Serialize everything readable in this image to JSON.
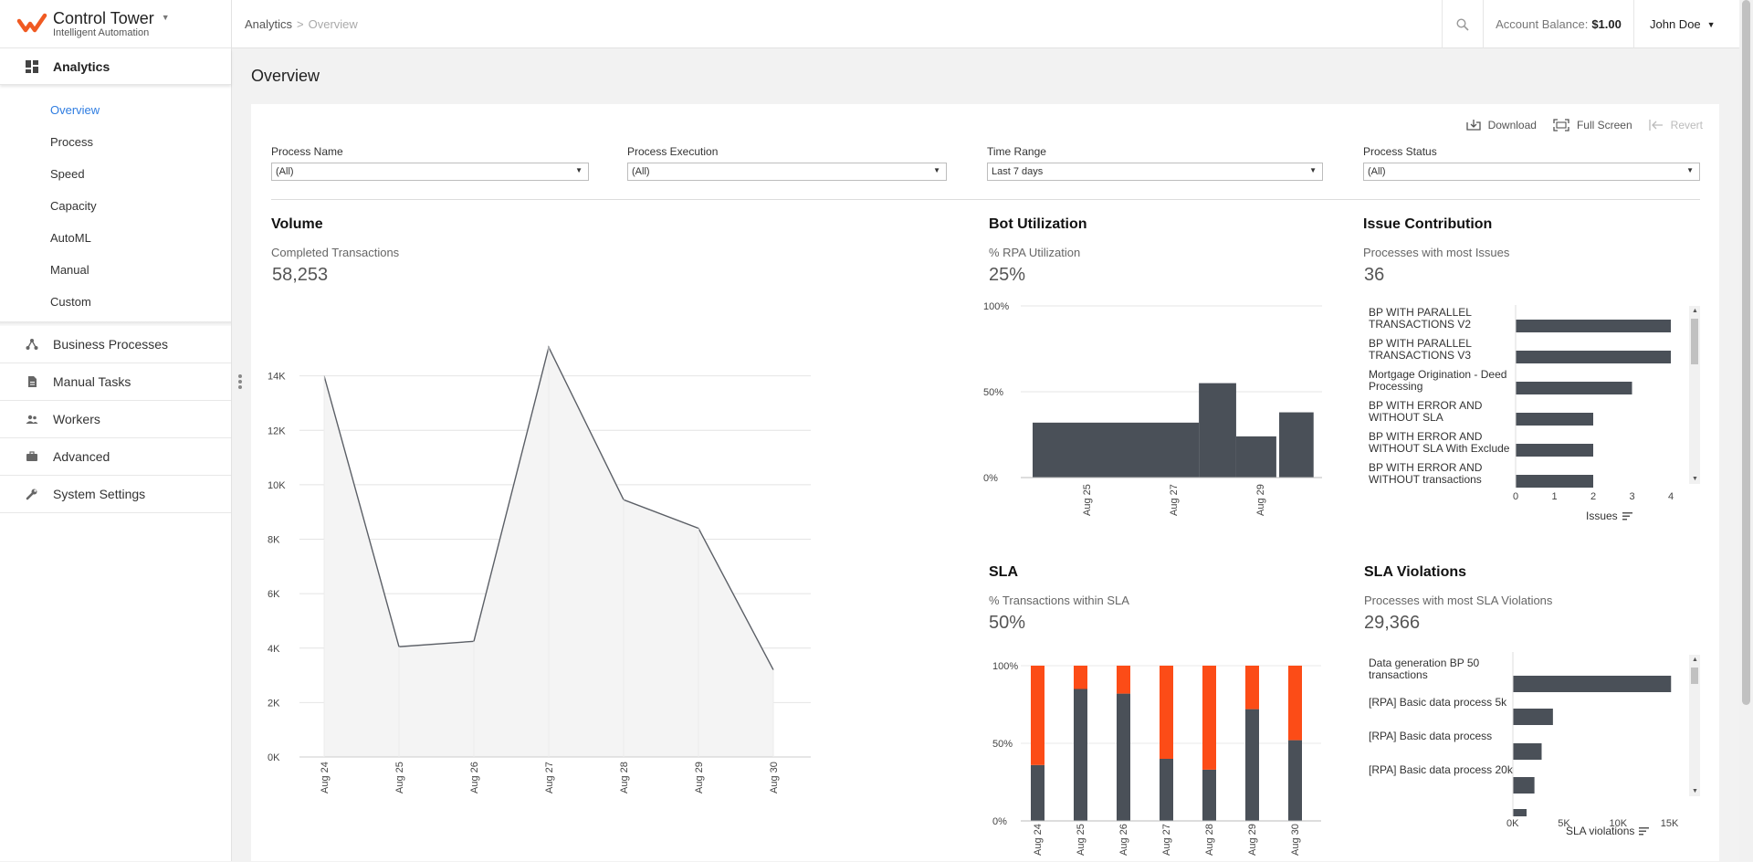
{
  "app": {
    "name": "Control Tower",
    "tagline": "Intelligent Automation"
  },
  "sidebar": {
    "section": "Analytics",
    "subitems": [
      "Overview",
      "Process",
      "Speed",
      "Capacity",
      "AutoML",
      "Manual",
      "Custom"
    ],
    "active_subitem": "Overview",
    "items": [
      {
        "label": "Business Processes",
        "icon": "hierarchy-icon"
      },
      {
        "label": "Manual Tasks",
        "icon": "document-icon"
      },
      {
        "label": "Workers",
        "icon": "people-icon"
      },
      {
        "label": "Advanced",
        "icon": "briefcase-icon"
      },
      {
        "label": "System Settings",
        "icon": "wrench-icon"
      }
    ]
  },
  "topbar": {
    "breadcrumb": [
      "Analytics",
      "Overview"
    ],
    "balance_label": "Account Balance:",
    "balance_value": "$1.00",
    "user": "John Doe"
  },
  "page": {
    "title": "Overview"
  },
  "toolbar": {
    "download": "Download",
    "fullscreen": "Full Screen",
    "revert": "Revert"
  },
  "filters": [
    {
      "label": "Process Name",
      "value": "(All)"
    },
    {
      "label": "Process Execution",
      "value": "(All)"
    },
    {
      "label": "Time Range",
      "value": "Last 7 days"
    },
    {
      "label": "Process Status",
      "value": "(All)"
    }
  ],
  "panels": {
    "volume": {
      "title": "Volume",
      "subtitle": "Completed Transactions",
      "value": "58,253"
    },
    "bot": {
      "title": "Bot Utilization",
      "subtitle": "% RPA Utilization",
      "value": "25%"
    },
    "issue": {
      "title": "Issue Contribution",
      "subtitle": "Processes with most Issues",
      "value": "36",
      "axis_title": "Issues"
    },
    "sla": {
      "title": "SLA",
      "subtitle": "% Transactions within SLA",
      "value": "50%"
    },
    "violations": {
      "title": "SLA Violations",
      "subtitle": "Processes with most SLA Violations",
      "value": "29,366",
      "axis_title": "SLA violations"
    }
  },
  "colors": {
    "accent": "#2f7de1",
    "bar": "#4a5058",
    "sla_miss": "#fc4c17",
    "logo": "#f05a22"
  },
  "chart_data": [
    {
      "id": "volume",
      "type": "area",
      "categories": [
        "Aug 24",
        "Aug 25",
        "Aug 26",
        "Aug 27",
        "Aug 28",
        "Aug 29",
        "Aug 30"
      ],
      "values": [
        14000,
        4050,
        4250,
        15050,
        9450,
        8400,
        3200
      ],
      "yticks": [
        "0K",
        "2K",
        "4K",
        "6K",
        "8K",
        "10K",
        "12K",
        "14K"
      ],
      "ylim": [
        0,
        16000
      ]
    },
    {
      "id": "bot_utilization",
      "type": "area",
      "xticks": [
        "Aug 25",
        "Aug 27",
        "Aug 29"
      ],
      "yticks": [
        "0%",
        "50%",
        "100%"
      ],
      "ylim": [
        0,
        100
      ],
      "segments": [
        {
          "from": 0.0,
          "to": 0.58,
          "level": 32
        },
        {
          "from": 0.58,
          "to": 0.71,
          "level": 55
        },
        {
          "from": 0.71,
          "to": 0.85,
          "level": 24
        },
        {
          "from": 0.86,
          "to": 0.98,
          "level": 38
        }
      ]
    },
    {
      "id": "issue_contribution",
      "type": "bar",
      "orientation": "horizontal",
      "categories": [
        "BP WITH PARALLEL TRANSACTIONS V2",
        "BP WITH PARALLEL TRANSACTIONS V3",
        "Mortgage Origination - Deed Processing",
        "BP WITH ERROR AND WITHOUT SLA",
        "BP WITH ERROR AND WITHOUT SLA With Exclude",
        "BP WITH ERROR AND WITHOUT transactions"
      ],
      "values": [
        4,
        4,
        3,
        2,
        2,
        2
      ],
      "xticks": [
        "0",
        "1",
        "2",
        "3",
        "4"
      ],
      "xlim": [
        0,
        4
      ],
      "xlabel": "Issues"
    },
    {
      "id": "sla",
      "type": "bar",
      "stacked": true,
      "categories": [
        "Aug 24",
        "Aug 25",
        "Aug 26",
        "Aug 27",
        "Aug 28",
        "Aug 29",
        "Aug 30"
      ],
      "series": [
        {
          "values": [
            36,
            85,
            82,
            40,
            33,
            72,
            52
          ]
        },
        {
          "values": [
            64,
            15,
            18,
            60,
            67,
            28,
            48
          ]
        }
      ],
      "yticks": [
        "0%",
        "50%",
        "100%"
      ],
      "ylim": [
        0,
        100
      ]
    },
    {
      "id": "sla_violations",
      "type": "bar",
      "orientation": "horizontal",
      "categories": [
        "Data generation BP 50 transactions",
        "[RPA] Basic data process 5k",
        "[RPA] Basic data process",
        "[RPA] Basic data process 20k"
      ],
      "values": [
        15400,
        3900,
        2800,
        2100
      ],
      "xticks": [
        "0K",
        "5K",
        "10K",
        "15K"
      ],
      "xlim": [
        0,
        16000
      ],
      "xlabel": "SLA violations"
    }
  ]
}
